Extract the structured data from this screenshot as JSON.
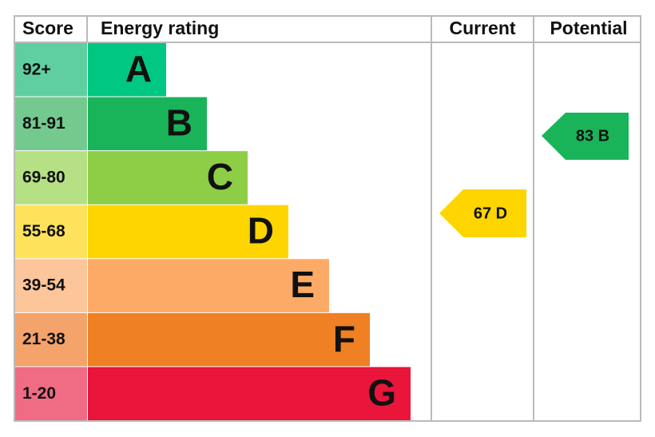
{
  "header": {
    "score": "Score",
    "rating": "Energy rating",
    "current": "Current",
    "potential": "Potential"
  },
  "bands": [
    {
      "score": "92+",
      "letter": "A",
      "color": "#00c781",
      "score_color": "#5fcf9f"
    },
    {
      "score": "81-91",
      "letter": "B",
      "color": "#19b459",
      "score_color": "#73c98e"
    },
    {
      "score": "69-80",
      "letter": "C",
      "color": "#8dce46",
      "score_color": "#b5e084"
    },
    {
      "score": "55-68",
      "letter": "D",
      "color": "#ffd500",
      "score_color": "#ffe25c"
    },
    {
      "score": "39-54",
      "letter": "E",
      "color": "#fcaa65",
      "score_color": "#fdc69a"
    },
    {
      "score": "21-38",
      "letter": "F",
      "color": "#ef8023",
      "score_color": "#f4a36a"
    },
    {
      "score": "1-20",
      "letter": "G",
      "color": "#e9153b",
      "score_color": "#f06b84"
    }
  ],
  "current": {
    "label": "67 D",
    "color": "#ffd500"
  },
  "potential": {
    "label": "83 B",
    "color": "#19b459"
  }
}
